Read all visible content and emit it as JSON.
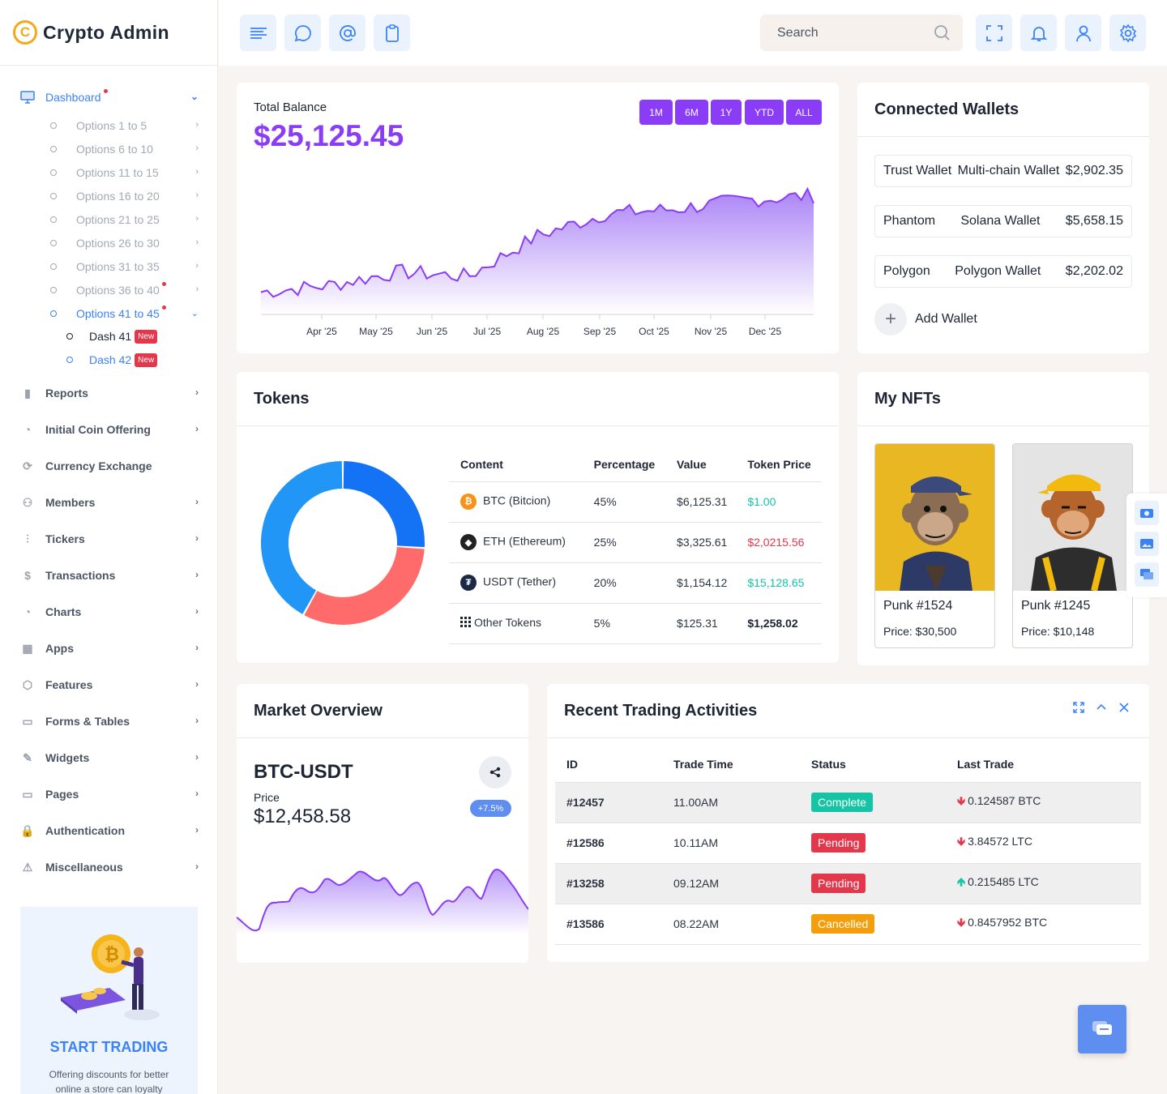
{
  "brand": {
    "name": "Crypto Admin",
    "logo_letter": "C"
  },
  "sidebar": {
    "dashboard": "Dashboard",
    "options": [
      "Options 1 to 5",
      "Options 6 to 10",
      "Options 11 to 15",
      "Options 16 to 20",
      "Options 21 to 25",
      "Options 26 to 30",
      "Options 31 to 35",
      "Options 36 to 40",
      "Options 41 to 45"
    ],
    "dash41": "Dash 41",
    "dash42": "Dash 42",
    "new_badge": "New",
    "items": [
      "Reports",
      "Initial Coin Offering",
      "Currency Exchange",
      "Members",
      "Tickers",
      "Transactions",
      "Charts",
      "Apps",
      "Features",
      "Forms & Tables",
      "Widgets",
      "Pages",
      "Authentication",
      "Miscellaneous"
    ],
    "promo_title": "START TRADING",
    "promo_text": "Offering discounts for better online a store can loyalty"
  },
  "topbar": {
    "search_placeholder": "Search"
  },
  "balance": {
    "label": "Total Balance",
    "value": "$25,125.45",
    "ranges": [
      "1M",
      "6M",
      "1Y",
      "YTD",
      "ALL"
    ],
    "months": [
      "Apr '25",
      "May '25",
      "Jun '25",
      "Jul '25",
      "Aug '25",
      "Sep '25",
      "Oct '25",
      "Nov '25",
      "Dec '25"
    ]
  },
  "chart_data": {
    "type": "area",
    "x": [
      "Apr '25",
      "May '25",
      "Jun '25",
      "Jul '25",
      "Aug '25",
      "Sep '25",
      "Oct '25",
      "Nov '25",
      "Dec '25"
    ],
    "series": [
      {
        "values": [
          35,
          38,
          44,
          42,
          60,
          70,
          72,
          76,
          78
        ]
      }
    ]
  },
  "wallets": {
    "title": "Connected Wallets",
    "rows": [
      {
        "name": "Trust Wallet",
        "type": "Multi-chain Wallet",
        "amount": "$2,902.35"
      },
      {
        "name": "Phantom",
        "type": "Solana Wallet",
        "amount": "$5,658.15"
      },
      {
        "name": "Polygon",
        "type": "Polygon Wallet",
        "amount": "$2,202.02"
      }
    ],
    "add_label": "Add Wallet"
  },
  "tokens": {
    "title": "Tokens",
    "headers": [
      "Content",
      "Percentage",
      "Value",
      "Token Price"
    ],
    "rows": [
      {
        "name": "BTC (Bitcion)",
        "pct": "45%",
        "value": "$6,125.31",
        "price": "$1.00"
      },
      {
        "name": "ETH (Ethereum)",
        "pct": "25%",
        "value": "$3,325.61",
        "price": "$2,0215.56"
      },
      {
        "name": "USDT (Tether)",
        "pct": "20%",
        "value": "$1,154.12",
        "price": "$15,128.65"
      },
      {
        "name": "Other Tokens",
        "pct": "5%",
        "value": "$125.31",
        "price": "$1,258.02"
      }
    ],
    "donut": [
      {
        "value": 26,
        "color": "#1472f5"
      },
      {
        "value": 32,
        "color": "#ff6b6b"
      },
      {
        "value": 42,
        "color": "#2196f7"
      }
    ]
  },
  "nfts": {
    "title": "My NFTs",
    "items": [
      {
        "name": "Punk #1524",
        "price": "Price: $30,500"
      },
      {
        "name": "Punk #1245",
        "price": "Price: $10,148"
      }
    ]
  },
  "market": {
    "title": "Market Overview",
    "pair": "BTC-USDT",
    "price_label": "Price",
    "price": "$12,458.58",
    "change": "+7.5%"
  },
  "trading": {
    "title": "Recent Trading Activities",
    "headers": [
      "ID",
      "Trade Time",
      "Status",
      "Last Trade"
    ],
    "rows": [
      {
        "id": "#12457",
        "time": "11.00AM",
        "status": "Complete",
        "status_color": "#14c4a5",
        "dir": "down",
        "trade": "0.124587 BTC"
      },
      {
        "id": "#12586",
        "time": "10.11AM",
        "status": "Pending",
        "status_color": "#e3374c",
        "dir": "down",
        "trade": "3.84572 LTC"
      },
      {
        "id": "#13258",
        "time": "09.12AM",
        "status": "Pending",
        "status_color": "#e3374c",
        "dir": "up",
        "trade": "0.215485 LTC"
      },
      {
        "id": "#13586",
        "time": "08.22AM",
        "status": "Cancelled",
        "status_color": "#f59e0b",
        "dir": "down",
        "trade": "0.8457952 BTC"
      }
    ]
  },
  "colors": {
    "accent": "#8b3cf7",
    "primary": "#3b82f6",
    "danger": "#e3374c",
    "success": "#14c4a5"
  }
}
